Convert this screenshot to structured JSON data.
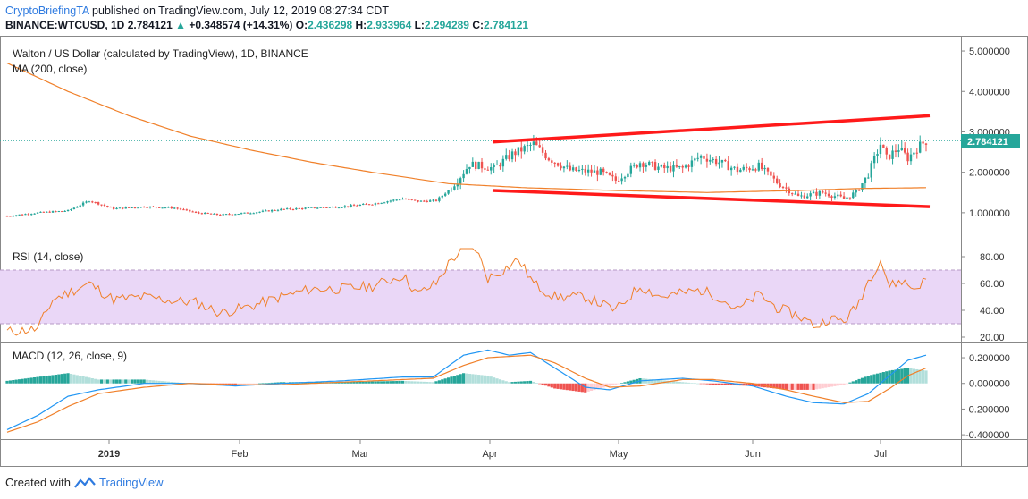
{
  "header": {
    "author": "CryptoBriefingTA",
    "published_text": "published on TradingView.com, July 12, 2019 08:27:34 CDT",
    "symbol": "BINANCE:WTCUSD, 1D",
    "last": "2.784121",
    "change_arrow": "▲",
    "change": "+0.348574 (+14.31%)",
    "open_label": "O:",
    "open": "2.436298",
    "high_label": "H:",
    "high": "2.933964",
    "low_label": "L:",
    "low": "2.294289",
    "close_label": "C:",
    "close": "2.784121"
  },
  "panes": {
    "price_title": "Walton / US Dollar (calculated by TradingView), 1D, BINANCE",
    "ma_label": "MA (200, close)",
    "rsi_label": "RSI (14, close)",
    "macd_label": "MACD (12, 26, close, 9)",
    "last_price_tag": "2.784121"
  },
  "footer": {
    "created_with": "Created with",
    "brand": "TradingView"
  },
  "colors": {
    "up": "#26a69a",
    "down": "#ef5350",
    "ma": "#f0802a",
    "trendline": "#ff1a1a",
    "rsi": "#f0802a",
    "rsi_band": "#ead7f7",
    "macd": "#2196f3",
    "signal": "#f0802a"
  },
  "chart_data": {
    "type": "candlestick",
    "x_ticks": [
      "2019",
      "Feb",
      "Mar",
      "Apr",
      "May",
      "Jun",
      "Jul"
    ],
    "price_axis": {
      "ticks": [
        "5.000000",
        "4.000000",
        "3.000000",
        "2.000000",
        "1.000000"
      ],
      "range": [
        0.4,
        5.2
      ]
    },
    "rsi_axis": {
      "ticks": [
        "80.00",
        "60.00",
        "40.00",
        "20.00"
      ],
      "range": [
        18,
        86
      ],
      "band": [
        30,
        70
      ]
    },
    "macd_axis": {
      "ticks": [
        "0.200000",
        "0.000000",
        "-0.200000",
        "-0.400000"
      ],
      "range": [
        -0.42,
        0.27
      ]
    },
    "trendlines": [
      {
        "from": [
          "Apr",
          2.75
        ],
        "to": [
          "Jul+",
          3.4
        ]
      },
      {
        "from": [
          "Apr",
          1.55
        ],
        "to": [
          "Jul+",
          1.15
        ]
      }
    ],
    "price_anchors": [
      [
        0,
        0.92
      ],
      [
        10,
        1.0
      ],
      [
        20,
        1.05
      ],
      [
        27,
        1.3
      ],
      [
        35,
        1.1
      ],
      [
        45,
        1.15
      ],
      [
        55,
        1.12
      ],
      [
        62,
        1.0
      ],
      [
        70,
        0.95
      ],
      [
        80,
        1.0
      ],
      [
        90,
        1.08
      ],
      [
        100,
        1.12
      ],
      [
        110,
        1.15
      ],
      [
        120,
        1.22
      ],
      [
        130,
        1.35
      ],
      [
        135,
        1.28
      ],
      [
        141,
        1.3
      ],
      [
        145,
        1.55
      ],
      [
        148,
        1.8
      ],
      [
        152,
        2.2
      ],
      [
        160,
        2.1
      ],
      [
        166,
        2.45
      ],
      [
        173,
        2.7
      ],
      [
        178,
        2.35
      ],
      [
        185,
        2.05
      ],
      [
        195,
        2.0
      ],
      [
        200,
        1.8
      ],
      [
        208,
        2.25
      ],
      [
        215,
        2.1
      ],
      [
        222,
        2.1
      ],
      [
        228,
        2.4
      ],
      [
        234,
        2.25
      ],
      [
        240,
        2.05
      ],
      [
        247,
        2.15
      ],
      [
        253,
        1.75
      ],
      [
        260,
        1.4
      ],
      [
        268,
        1.5
      ],
      [
        275,
        1.35
      ],
      [
        279,
        1.5
      ],
      [
        283,
        1.95
      ],
      [
        287,
        2.7
      ],
      [
        289,
        2.35
      ],
      [
        293,
        2.6
      ],
      [
        296,
        2.35
      ],
      [
        299,
        2.6
      ],
      [
        302,
        2.78
      ]
    ],
    "ma_anchors": [
      [
        0,
        4.7
      ],
      [
        20,
        4.0
      ],
      [
        40,
        3.4
      ],
      [
        60,
        2.9
      ],
      [
        80,
        2.55
      ],
      [
        100,
        2.25
      ],
      [
        120,
        2.0
      ],
      [
        145,
        1.72
      ],
      [
        170,
        1.62
      ],
      [
        200,
        1.55
      ],
      [
        230,
        1.5
      ],
      [
        260,
        1.55
      ],
      [
        280,
        1.6
      ],
      [
        302,
        1.62
      ]
    ],
    "rsi_anchors": [
      [
        0,
        24
      ],
      [
        10,
        26
      ],
      [
        15,
        48
      ],
      [
        22,
        55
      ],
      [
        27,
        60
      ],
      [
        35,
        48
      ],
      [
        45,
        50
      ],
      [
        55,
        47
      ],
      [
        62,
        46
      ],
      [
        70,
        38
      ],
      [
        80,
        43
      ],
      [
        90,
        50
      ],
      [
        100,
        56
      ],
      [
        110,
        56
      ],
      [
        120,
        58
      ],
      [
        130,
        66
      ],
      [
        135,
        52
      ],
      [
        141,
        60
      ],
      [
        146,
        78
      ],
      [
        150,
        85
      ],
      [
        154,
        86
      ],
      [
        158,
        64
      ],
      [
        163,
        70
      ],
      [
        168,
        78
      ],
      [
        173,
        60
      ],
      [
        180,
        50
      ],
      [
        190,
        50
      ],
      [
        200,
        40
      ],
      [
        208,
        58
      ],
      [
        215,
        50
      ],
      [
        222,
        53
      ],
      [
        228,
        55
      ],
      [
        234,
        50
      ],
      [
        240,
        40
      ],
      [
        247,
        52
      ],
      [
        253,
        42
      ],
      [
        260,
        36
      ],
      [
        266,
        28
      ],
      [
        270,
        34
      ],
      [
        275,
        32
      ],
      [
        279,
        42
      ],
      [
        283,
        62
      ],
      [
        287,
        78
      ],
      [
        290,
        58
      ],
      [
        294,
        62
      ],
      [
        298,
        56
      ],
      [
        302,
        63
      ]
    ],
    "macd_anchors": [
      [
        0,
        -0.36
      ],
      [
        10,
        -0.25
      ],
      [
        20,
        -0.1
      ],
      [
        30,
        -0.05
      ],
      [
        45,
        0.0
      ],
      [
        60,
        0.0
      ],
      [
        75,
        -0.02
      ],
      [
        90,
        0.0
      ],
      [
        110,
        0.02
      ],
      [
        130,
        0.05
      ],
      [
        140,
        0.05
      ],
      [
        150,
        0.22
      ],
      [
        158,
        0.26
      ],
      [
        165,
        0.22
      ],
      [
        172,
        0.24
      ],
      [
        180,
        0.12
      ],
      [
        190,
        -0.03
      ],
      [
        198,
        -0.05
      ],
      [
        208,
        0.02
      ],
      [
        222,
        0.04
      ],
      [
        232,
        0.02
      ],
      [
        245,
        -0.02
      ],
      [
        256,
        -0.1
      ],
      [
        265,
        -0.15
      ],
      [
        275,
        -0.16
      ],
      [
        283,
        -0.08
      ],
      [
        290,
        0.06
      ],
      [
        296,
        0.18
      ],
      [
        302,
        0.22
      ]
    ],
    "signal_anchors": [
      [
        0,
        -0.38
      ],
      [
        10,
        -0.3
      ],
      [
        20,
        -0.18
      ],
      [
        30,
        -0.08
      ],
      [
        45,
        -0.03
      ],
      [
        60,
        0.0
      ],
      [
        75,
        -0.01
      ],
      [
        90,
        -0.01
      ],
      [
        110,
        0.01
      ],
      [
        130,
        0.03
      ],
      [
        140,
        0.04
      ],
      [
        150,
        0.14
      ],
      [
        158,
        0.2
      ],
      [
        165,
        0.21
      ],
      [
        172,
        0.22
      ],
      [
        180,
        0.16
      ],
      [
        190,
        0.04
      ],
      [
        198,
        -0.03
      ],
      [
        208,
        -0.02
      ],
      [
        222,
        0.03
      ],
      [
        232,
        0.03
      ],
      [
        245,
        0.0
      ],
      [
        256,
        -0.05
      ],
      [
        265,
        -0.1
      ],
      [
        275,
        -0.15
      ],
      [
        283,
        -0.14
      ],
      [
        290,
        -0.04
      ],
      [
        296,
        0.06
      ],
      [
        302,
        0.12
      ]
    ],
    "candles_count": 303
  }
}
